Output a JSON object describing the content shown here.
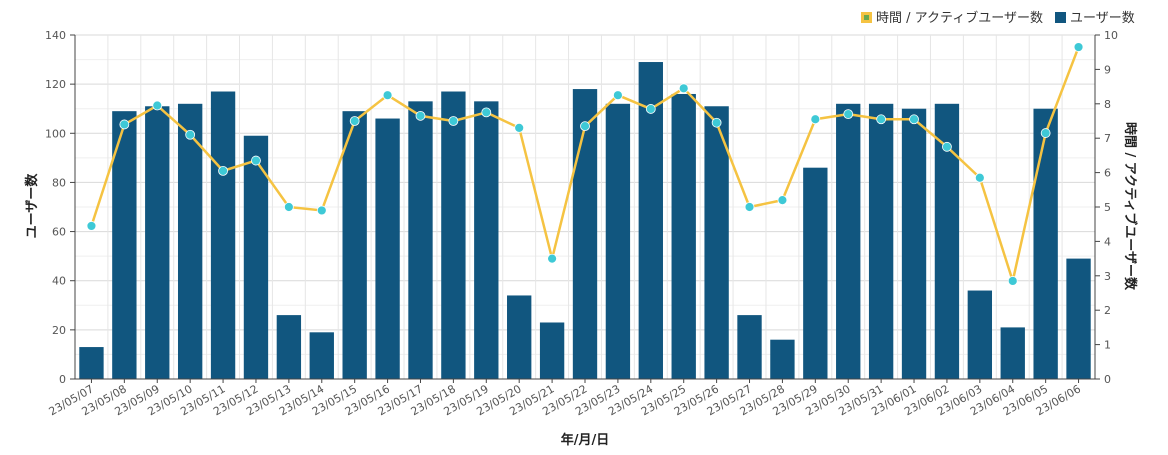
{
  "chart_data": {
    "type": "bar+line",
    "title": "",
    "xlabel": "年/月/日",
    "ylabel_left": "ユーザー数",
    "ylabel_right": "時間 / アクティブユーザー数",
    "ylim_left": [
      0,
      140
    ],
    "ylim_right": [
      0,
      10
    ],
    "yticks_left": [
      0,
      20,
      40,
      60,
      80,
      100,
      120,
      140
    ],
    "yticks_right": [
      0,
      1,
      2,
      3,
      4,
      5,
      6,
      7,
      8,
      9,
      10
    ],
    "grid": true,
    "legend_position": "top-right",
    "categories": [
      "23/05/07",
      "23/05/08",
      "23/05/09",
      "23/05/10",
      "23/05/11",
      "23/05/12",
      "23/05/13",
      "23/05/14",
      "23/05/15",
      "23/05/16",
      "23/05/17",
      "23/05/18",
      "23/05/19",
      "23/05/20",
      "23/05/21",
      "23/05/22",
      "23/05/23",
      "23/05/24",
      "23/05/25",
      "23/05/26",
      "23/05/27",
      "23/05/28",
      "23/05/29",
      "23/05/30",
      "23/05/31",
      "23/06/01",
      "23/06/02",
      "23/06/03",
      "23/06/04",
      "23/06/05",
      "23/06/06"
    ],
    "series": [
      {
        "name": "ユーザー数",
        "type": "bar",
        "axis": "left",
        "color": "#11567f",
        "values": [
          13,
          109,
          111,
          112,
          117,
          99,
          26,
          19,
          109,
          106,
          113,
          117,
          113,
          34,
          23,
          118,
          112,
          129,
          116,
          111,
          26,
          16,
          86,
          112,
          112,
          110,
          112,
          36,
          21,
          110,
          49
        ]
      },
      {
        "name": "時間 / アクティブユーザー数",
        "type": "line",
        "axis": "right",
        "color": "#f5c342",
        "marker_color": "#3ec9d6",
        "values": [
          4.45,
          7.4,
          7.95,
          7.1,
          6.05,
          6.35,
          5.0,
          4.9,
          7.5,
          8.25,
          7.65,
          7.5,
          7.75,
          7.3,
          3.5,
          7.35,
          8.25,
          7.85,
          8.45,
          7.45,
          5.0,
          5.2,
          7.55,
          7.7,
          7.55,
          7.55,
          6.75,
          5.85,
          2.85,
          7.15,
          9.65
        ]
      }
    ]
  }
}
